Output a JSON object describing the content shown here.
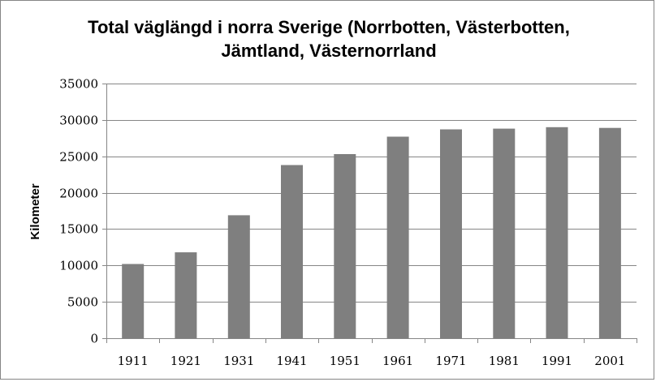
{
  "chart_data": {
    "type": "bar",
    "title_lines": [
      "Total väglängd i norra Sverige (Norrbotten, Västerbotten,",
      "Jämtland,  Västernorrland"
    ],
    "xlabel": "",
    "ylabel": "Kilometer",
    "categories": [
      "1911",
      "1921",
      "1931",
      "1941",
      "1951",
      "1961",
      "1971",
      "1981",
      "1991",
      "2001"
    ],
    "values": [
      10200,
      11800,
      16900,
      23800,
      25300,
      27700,
      28700,
      28800,
      29000,
      28900
    ],
    "ylim": [
      0,
      35000
    ],
    "yticks": [
      "0",
      "5000",
      "10000",
      "15000",
      "20000",
      "25000",
      "30000",
      "35000"
    ],
    "grid": true,
    "legend": "none",
    "colors": {
      "bar": "#7f7f7f",
      "grid": "#868686",
      "axis": "#868686",
      "border": "#868686"
    }
  }
}
